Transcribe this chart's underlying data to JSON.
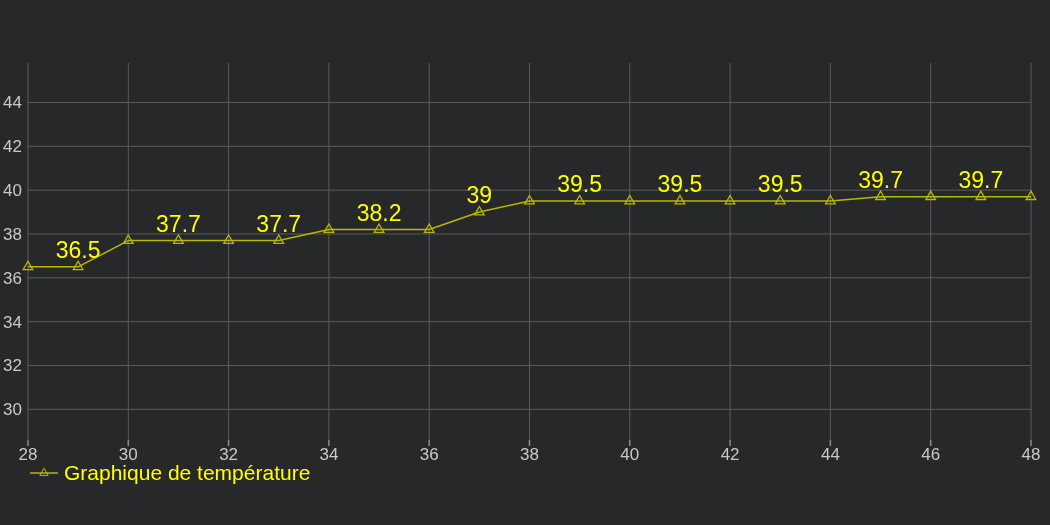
{
  "chart_data": {
    "type": "line",
    "x": [
      28,
      29,
      30,
      31,
      32,
      33,
      34,
      35,
      36,
      37,
      38,
      39,
      40,
      41,
      42,
      43,
      44,
      45,
      46,
      47,
      48
    ],
    "series": [
      {
        "name": "Graphique de température",
        "color": "#b8b800",
        "values": [
          36.5,
          36.5,
          37.7,
          37.7,
          37.7,
          37.7,
          38.2,
          38.2,
          38.2,
          39,
          39.5,
          39.5,
          39.5,
          39.5,
          39.5,
          39.5,
          39.5,
          39.7,
          39.7,
          39.7,
          39.7
        ],
        "value_labels": [
          null,
          "36.5",
          null,
          "37.7",
          null,
          "37.7",
          null,
          "38.2",
          null,
          "39",
          null,
          "39.5",
          null,
          "39.5",
          null,
          "39.5",
          null,
          "39.7",
          null,
          "39.7",
          null
        ]
      }
    ],
    "xlim": [
      28,
      48
    ],
    "xticks": [
      28,
      30,
      32,
      34,
      36,
      38,
      40,
      42,
      44,
      46,
      48
    ],
    "ylim": [
      28.6,
      45.8
    ],
    "yticks": [
      30,
      32,
      34,
      36,
      38,
      40,
      42,
      44
    ],
    "grid": true,
    "legend": "bottom left",
    "marker": "triangle",
    "line_style": "solid"
  }
}
